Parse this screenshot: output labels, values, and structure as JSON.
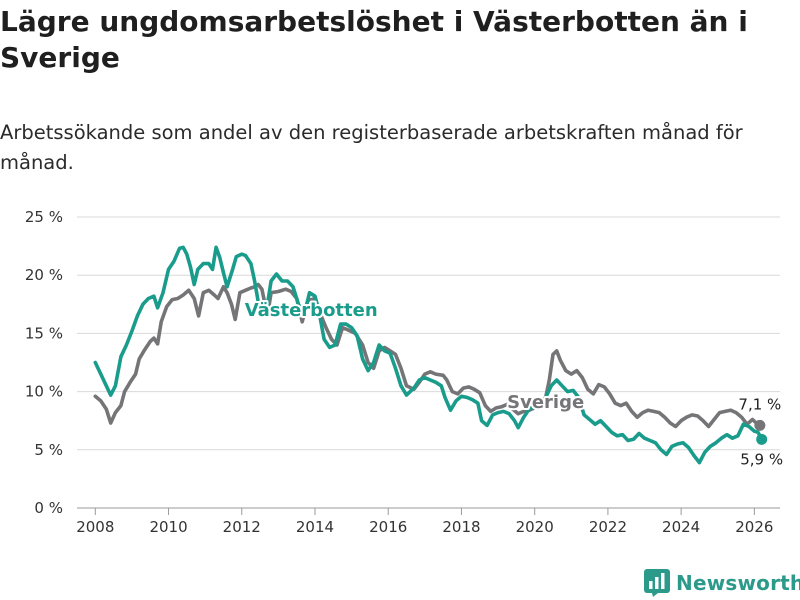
{
  "title": "Lägre ungdomsarbetslöshet i Västerbotten än i Sverige",
  "subtitle": "Arbetssökande som andel av den registerbaserade arbetskraften månad för månad.",
  "brand": {
    "name": "Newsworthy",
    "icon": "bar-chart-logo-icon"
  },
  "colors": {
    "vasterbotten": "#1a9c8c",
    "sverige": "#757477",
    "grid": "#d9d9d9"
  },
  "chart_data": {
    "type": "line",
    "title": "Lägre ungdomsarbetslöshet i Västerbotten än i Sverige",
    "xlabel": "",
    "ylabel": "",
    "xlim": [
      2007.5,
      2026.7
    ],
    "ylim": [
      0,
      25
    ],
    "grid": true,
    "y_ticks": [
      0,
      5,
      10,
      15,
      20,
      25
    ],
    "y_tick_labels": [
      "0 %",
      "5 %",
      "10 %",
      "15 %",
      "20 %",
      "25 %"
    ],
    "x_ticks": [
      2008,
      2010,
      2012,
      2014,
      2016,
      2018,
      2020,
      2022,
      2024,
      2026
    ],
    "x_tick_labels": [
      "2008",
      "2010",
      "2012",
      "2014",
      "2016",
      "2018",
      "2020",
      "2022",
      "2024",
      "2026"
    ],
    "series": [
      {
        "name": "Sverige",
        "label": "Sverige",
        "end_label": "7,1 %",
        "points": [
          [
            2008.0,
            9.6
          ],
          [
            2008.15,
            9.2
          ],
          [
            2008.3,
            8.5
          ],
          [
            2008.42,
            7.3
          ],
          [
            2008.55,
            8.2
          ],
          [
            2008.7,
            8.8
          ],
          [
            2008.8,
            10.0
          ],
          [
            2008.95,
            10.8
          ],
          [
            2009.1,
            11.5
          ],
          [
            2009.2,
            12.8
          ],
          [
            2009.35,
            13.6
          ],
          [
            2009.5,
            14.3
          ],
          [
            2009.6,
            14.6
          ],
          [
            2009.7,
            14.1
          ],
          [
            2009.8,
            16.0
          ],
          [
            2009.95,
            17.3
          ],
          [
            2010.1,
            17.9
          ],
          [
            2010.25,
            18.0
          ],
          [
            2010.4,
            18.3
          ],
          [
            2010.55,
            18.7
          ],
          [
            2010.7,
            18.0
          ],
          [
            2010.82,
            16.5
          ],
          [
            2010.95,
            18.5
          ],
          [
            2011.1,
            18.7
          ],
          [
            2011.25,
            18.3
          ],
          [
            2011.35,
            18.0
          ],
          [
            2011.5,
            19.0
          ],
          [
            2011.6,
            18.5
          ],
          [
            2011.72,
            17.5
          ],
          [
            2011.82,
            16.2
          ],
          [
            2011.95,
            18.5
          ],
          [
            2012.1,
            18.7
          ],
          [
            2012.25,
            18.9
          ],
          [
            2012.35,
            19.0
          ],
          [
            2012.45,
            19.2
          ],
          [
            2012.55,
            18.8
          ],
          [
            2012.7,
            16.5
          ],
          [
            2012.8,
            18.5
          ],
          [
            2013.0,
            18.6
          ],
          [
            2013.2,
            18.8
          ],
          [
            2013.35,
            18.6
          ],
          [
            2013.5,
            18.0
          ],
          [
            2013.65,
            16.0
          ],
          [
            2013.8,
            17.8
          ],
          [
            2014.0,
            18.0
          ],
          [
            2014.1,
            17.0
          ],
          [
            2014.3,
            15.5
          ],
          [
            2014.45,
            14.5
          ],
          [
            2014.6,
            14.0
          ],
          [
            2014.75,
            15.5
          ],
          [
            2014.9,
            15.3
          ],
          [
            2015.1,
            15.0
          ],
          [
            2015.3,
            14.0
          ],
          [
            2015.45,
            12.5
          ],
          [
            2015.6,
            12.0
          ],
          [
            2015.75,
            13.5
          ],
          [
            2015.9,
            13.8
          ],
          [
            2016.05,
            13.5
          ],
          [
            2016.2,
            13.2
          ],
          [
            2016.35,
            12.0
          ],
          [
            2016.5,
            10.5
          ],
          [
            2016.7,
            10.2
          ],
          [
            2016.85,
            10.8
          ],
          [
            2017.0,
            11.5
          ],
          [
            2017.15,
            11.7
          ],
          [
            2017.3,
            11.5
          ],
          [
            2017.5,
            11.4
          ],
          [
            2017.6,
            11.0
          ],
          [
            2017.75,
            10.0
          ],
          [
            2017.9,
            9.8
          ],
          [
            2018.05,
            10.3
          ],
          [
            2018.2,
            10.4
          ],
          [
            2018.35,
            10.2
          ],
          [
            2018.5,
            9.9
          ],
          [
            2018.65,
            8.8
          ],
          [
            2018.8,
            8.3
          ],
          [
            2018.95,
            8.6
          ],
          [
            2019.1,
            8.7
          ],
          [
            2019.25,
            8.9
          ],
          [
            2019.4,
            8.5
          ],
          [
            2019.55,
            8.1
          ],
          [
            2019.7,
            8.3
          ],
          [
            2019.85,
            8.4
          ],
          [
            2020.0,
            8.6
          ],
          [
            2020.15,
            8.8
          ],
          [
            2020.3,
            9.5
          ],
          [
            2020.4,
            11.0
          ],
          [
            2020.5,
            13.2
          ],
          [
            2020.6,
            13.5
          ],
          [
            2020.7,
            12.7
          ],
          [
            2020.85,
            11.8
          ],
          [
            2021.0,
            11.5
          ],
          [
            2021.15,
            11.8
          ],
          [
            2021.3,
            11.2
          ],
          [
            2021.45,
            10.2
          ],
          [
            2021.6,
            9.8
          ],
          [
            2021.75,
            10.6
          ],
          [
            2021.9,
            10.4
          ],
          [
            2022.05,
            9.8
          ],
          [
            2022.2,
            9.0
          ],
          [
            2022.35,
            8.8
          ],
          [
            2022.5,
            9.0
          ],
          [
            2022.65,
            8.3
          ],
          [
            2022.8,
            7.8
          ],
          [
            2022.95,
            8.2
          ],
          [
            2023.1,
            8.4
          ],
          [
            2023.25,
            8.3
          ],
          [
            2023.4,
            8.2
          ],
          [
            2023.55,
            7.8
          ],
          [
            2023.7,
            7.3
          ],
          [
            2023.85,
            7.0
          ],
          [
            2024.0,
            7.5
          ],
          [
            2024.15,
            7.8
          ],
          [
            2024.3,
            8.0
          ],
          [
            2024.45,
            7.9
          ],
          [
            2024.6,
            7.5
          ],
          [
            2024.75,
            7.0
          ],
          [
            2024.9,
            7.6
          ],
          [
            2025.05,
            8.2
          ],
          [
            2025.2,
            8.3
          ],
          [
            2025.35,
            8.4
          ],
          [
            2025.5,
            8.2
          ],
          [
            2025.65,
            7.8
          ],
          [
            2025.8,
            7.2
          ],
          [
            2025.95,
            7.6
          ],
          [
            2026.05,
            7.3
          ],
          [
            2026.15,
            7.1
          ]
        ]
      },
      {
        "name": "Västerbotten",
        "label": "Västerbotten",
        "end_label": "5,9 %",
        "points": [
          [
            2008.0,
            12.5
          ],
          [
            2008.15,
            11.5
          ],
          [
            2008.3,
            10.5
          ],
          [
            2008.42,
            9.7
          ],
          [
            2008.55,
            10.5
          ],
          [
            2008.7,
            13.0
          ],
          [
            2008.85,
            14.0
          ],
          [
            2009.0,
            15.2
          ],
          [
            2009.15,
            16.5
          ],
          [
            2009.3,
            17.5
          ],
          [
            2009.45,
            18.0
          ],
          [
            2009.6,
            18.2
          ],
          [
            2009.7,
            17.2
          ],
          [
            2009.85,
            18.5
          ],
          [
            2010.0,
            20.5
          ],
          [
            2010.15,
            21.2
          ],
          [
            2010.3,
            22.3
          ],
          [
            2010.4,
            22.4
          ],
          [
            2010.5,
            21.8
          ],
          [
            2010.6,
            20.7
          ],
          [
            2010.7,
            19.2
          ],
          [
            2010.8,
            20.5
          ],
          [
            2010.95,
            21.0
          ],
          [
            2011.1,
            21.0
          ],
          [
            2011.2,
            20.5
          ],
          [
            2011.3,
            22.4
          ],
          [
            2011.4,
            21.5
          ],
          [
            2011.5,
            20.2
          ],
          [
            2011.6,
            19.0
          ],
          [
            2011.75,
            20.5
          ],
          [
            2011.85,
            21.6
          ],
          [
            2012.0,
            21.8
          ],
          [
            2012.1,
            21.7
          ],
          [
            2012.25,
            21.0
          ],
          [
            2012.35,
            19.5
          ],
          [
            2012.5,
            16.8
          ],
          [
            2012.65,
            16.5
          ],
          [
            2012.8,
            19.5
          ],
          [
            2012.95,
            20.1
          ],
          [
            2013.1,
            19.5
          ],
          [
            2013.25,
            19.5
          ],
          [
            2013.4,
            19.0
          ],
          [
            2013.55,
            17.5
          ],
          [
            2013.7,
            16.5
          ],
          [
            2013.85,
            18.5
          ],
          [
            2014.0,
            18.2
          ],
          [
            2014.1,
            17.0
          ],
          [
            2014.25,
            14.5
          ],
          [
            2014.4,
            13.8
          ],
          [
            2014.55,
            14.0
          ],
          [
            2014.7,
            15.8
          ],
          [
            2014.85,
            15.8
          ],
          [
            2015.0,
            15.5
          ],
          [
            2015.15,
            14.8
          ],
          [
            2015.3,
            12.8
          ],
          [
            2015.45,
            11.8
          ],
          [
            2015.6,
            12.5
          ],
          [
            2015.75,
            14.0
          ],
          [
            2015.9,
            13.5
          ],
          [
            2016.05,
            13.3
          ],
          [
            2016.2,
            12.0
          ],
          [
            2016.35,
            10.5
          ],
          [
            2016.5,
            9.7
          ],
          [
            2016.7,
            10.3
          ],
          [
            2016.85,
            11.0
          ],
          [
            2017.0,
            11.2
          ],
          [
            2017.15,
            11.0
          ],
          [
            2017.3,
            10.8
          ],
          [
            2017.45,
            10.5
          ],
          [
            2017.55,
            9.5
          ],
          [
            2017.7,
            8.4
          ],
          [
            2017.85,
            9.2
          ],
          [
            2018.0,
            9.6
          ],
          [
            2018.15,
            9.5
          ],
          [
            2018.3,
            9.3
          ],
          [
            2018.45,
            9.0
          ],
          [
            2018.55,
            7.5
          ],
          [
            2018.7,
            7.1
          ],
          [
            2018.85,
            8.0
          ],
          [
            2019.0,
            8.2
          ],
          [
            2019.15,
            8.3
          ],
          [
            2019.3,
            8.1
          ],
          [
            2019.45,
            7.5
          ],
          [
            2019.55,
            6.9
          ],
          [
            2019.7,
            7.8
          ],
          [
            2019.85,
            8.5
          ],
          [
            2020.0,
            8.8
          ],
          [
            2020.15,
            9.0
          ],
          [
            2020.3,
            9.5
          ],
          [
            2020.45,
            10.5
          ],
          [
            2020.6,
            11.0
          ],
          [
            2020.75,
            10.5
          ],
          [
            2020.9,
            10.0
          ],
          [
            2021.05,
            10.1
          ],
          [
            2021.2,
            9.5
          ],
          [
            2021.35,
            8.0
          ],
          [
            2021.5,
            7.6
          ],
          [
            2021.65,
            7.2
          ],
          [
            2021.8,
            7.5
          ],
          [
            2021.95,
            7.0
          ],
          [
            2022.1,
            6.5
          ],
          [
            2022.25,
            6.2
          ],
          [
            2022.4,
            6.3
          ],
          [
            2022.55,
            5.8
          ],
          [
            2022.7,
            5.9
          ],
          [
            2022.85,
            6.4
          ],
          [
            2023.0,
            6.0
          ],
          [
            2023.15,
            5.8
          ],
          [
            2023.3,
            5.6
          ],
          [
            2023.45,
            5.0
          ],
          [
            2023.6,
            4.6
          ],
          [
            2023.75,
            5.3
          ],
          [
            2023.9,
            5.5
          ],
          [
            2024.05,
            5.6
          ],
          [
            2024.2,
            5.2
          ],
          [
            2024.35,
            4.5
          ],
          [
            2024.5,
            3.9
          ],
          [
            2024.65,
            4.8
          ],
          [
            2024.8,
            5.3
          ],
          [
            2024.95,
            5.6
          ],
          [
            2025.1,
            6.0
          ],
          [
            2025.25,
            6.3
          ],
          [
            2025.4,
            6.0
          ],
          [
            2025.55,
            6.2
          ],
          [
            2025.7,
            7.2
          ],
          [
            2025.85,
            7.0
          ],
          [
            2026.0,
            6.6
          ],
          [
            2026.1,
            6.5
          ],
          [
            2026.2,
            5.9
          ]
        ]
      }
    ]
  }
}
